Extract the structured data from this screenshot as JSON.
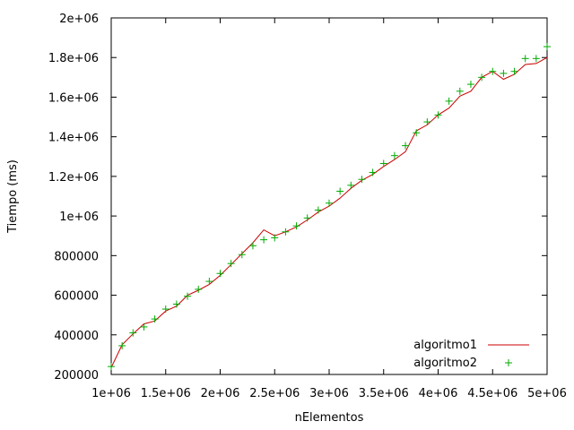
{
  "chart_data": {
    "type": "line",
    "title": "",
    "xlabel": "nElementos",
    "ylabel": "Tiempo (ms)",
    "xlim": [
      1000000,
      5000000
    ],
    "ylim": [
      200000,
      2000000
    ],
    "x_ticks": [
      1000000,
      1500000,
      2000000,
      2500000,
      3000000,
      3500000,
      4000000,
      4500000,
      5000000
    ],
    "x_tick_labels": [
      "1e+06",
      "1.5e+06",
      "2e+06",
      "2.5e+06",
      "3e+06",
      "3.5e+06",
      "4e+06",
      "4.5e+06",
      "5e+06"
    ],
    "y_ticks": [
      200000,
      400000,
      600000,
      800000,
      1000000,
      1200000,
      1400000,
      1600000,
      1800000,
      2000000
    ],
    "y_tick_labels": [
      "200000",
      "400000",
      "600000",
      "800000",
      "1e+06",
      "1.2e+06",
      "1.4e+06",
      "1.6e+06",
      "1.8e+06",
      "2e+06"
    ],
    "grid": false,
    "legend_position": "bottom-right",
    "x": [
      1000000,
      1100000,
      1200000,
      1300000,
      1400000,
      1500000,
      1600000,
      1700000,
      1800000,
      1900000,
      2000000,
      2100000,
      2200000,
      2300000,
      2400000,
      2500000,
      2600000,
      2700000,
      2800000,
      2900000,
      3000000,
      3100000,
      3200000,
      3300000,
      3400000,
      3500000,
      3600000,
      3700000,
      3800000,
      3900000,
      4000000,
      4100000,
      4200000,
      4300000,
      4400000,
      4500000,
      4600000,
      4700000,
      4800000,
      4900000,
      5000000
    ],
    "series": [
      {
        "name": "algoritmo1",
        "style": "line",
        "color": "#cc0000",
        "values": [
          235000,
          350000,
          405000,
          455000,
          470000,
          520000,
          545000,
          600000,
          625000,
          655000,
          700000,
          755000,
          810000,
          865000,
          930000,
          900000,
          920000,
          945000,
          980000,
          1020000,
          1050000,
          1090000,
          1140000,
          1180000,
          1210000,
          1250000,
          1285000,
          1325000,
          1430000,
          1460000,
          1510000,
          1545000,
          1605000,
          1630000,
          1700000,
          1730000,
          1690000,
          1715000,
          1765000,
          1770000,
          1800000
        ]
      },
      {
        "name": "algoritmo2",
        "style": "points",
        "color": "#00aa00",
        "values": [
          240000,
          345000,
          410000,
          440000,
          480000,
          530000,
          555000,
          595000,
          630000,
          670000,
          710000,
          760000,
          805000,
          850000,
          880000,
          890000,
          920000,
          950000,
          990000,
          1030000,
          1065000,
          1125000,
          1155000,
          1185000,
          1220000,
          1265000,
          1305000,
          1355000,
          1420000,
          1475000,
          1510000,
          1580000,
          1630000,
          1665000,
          1700000,
          1730000,
          1720000,
          1730000,
          1795000,
          1795000,
          1855000
        ]
      }
    ]
  }
}
